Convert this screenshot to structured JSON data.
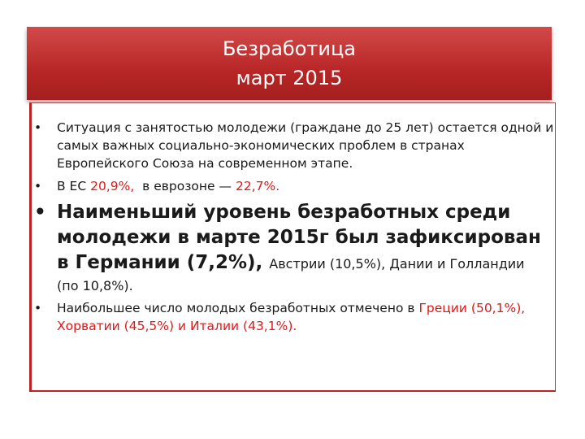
{
  "title": {
    "line1": "Безработица",
    "line2": "март 2015"
  },
  "bullets": {
    "b1": {
      "text": "Ситуация с занятостью молодежи (граждане до 25 лет) остается одной и самых важных социально-экономических проблем в странах Европейского Союза на современном этапе."
    },
    "b2": {
      "prefix": "В ЕС ",
      "eu_value": "20,9%,",
      "middle": "  в еврозоне — ",
      "euro_value": "22,7%."
    },
    "b3": {
      "bold": "Наименьший уровень безработных среди молодежи в марте 2015г был зафиксирован в Германии (7,2%), ",
      "normal": "Австрии (10,5%), Дании и Голландии",
      "after": "(по 10,8%)."
    },
    "b4": {
      "prefix": "Наибольшее число молодых безработных отмечено в ",
      "red": "Греции (50,1%), Хорватии (45,5%) и Италии (43,1%)."
    }
  },
  "colors": {
    "title_bg": "#b82626",
    "accent_red": "#e01818"
  }
}
